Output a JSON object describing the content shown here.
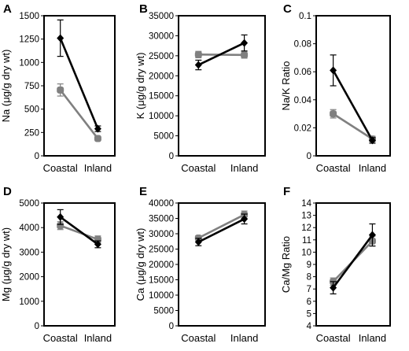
{
  "chart_data": [
    {
      "panel": "A",
      "type": "line",
      "ylabel": "Na (μg/g dry wt)",
      "categories": [
        "Coastal",
        "Inland"
      ],
      "ylim": [
        0,
        1500
      ],
      "yticks": [
        0,
        250,
        500,
        750,
        1000,
        1250,
        1500
      ],
      "series": [
        {
          "color": "#000000",
          "marker": "diamond",
          "values": [
            1260,
            290
          ],
          "errors": [
            195,
            30
          ]
        },
        {
          "color": "#808080",
          "marker": "circle",
          "values": [
            705,
            185
          ],
          "errors": [
            65,
            15
          ]
        }
      ]
    },
    {
      "panel": "B",
      "type": "line",
      "ylabel": "K (μg/g dry wt)",
      "categories": [
        "Coastal",
        "Inland"
      ],
      "ylim": [
        0,
        35000
      ],
      "yticks": [
        0,
        5000,
        10000,
        15000,
        20000,
        25000,
        30000,
        35000
      ],
      "series": [
        {
          "color": "#000000",
          "marker": "diamond",
          "values": [
            22700,
            28200
          ],
          "errors": [
            1200,
            2000
          ]
        },
        {
          "color": "#808080",
          "marker": "circle",
          "values": [
            25300,
            25200
          ],
          "errors": [
            800,
            800
          ]
        }
      ]
    },
    {
      "panel": "C",
      "type": "line",
      "ylabel": "Na/K Ratio",
      "categories": [
        "Coastal",
        "Inland"
      ],
      "ylim": [
        0,
        0.1
      ],
      "yticks": [
        "0",
        "0.02",
        "0.04",
        "0.06",
        "0.08",
        "0.1"
      ],
      "series": [
        {
          "color": "#000000",
          "marker": "diamond",
          "values": [
            0.061,
            0.011
          ],
          "errors": [
            0.011,
            0.002
          ]
        },
        {
          "color": "#808080",
          "marker": "circle",
          "values": [
            0.03,
            0.012
          ],
          "errors": [
            0.003,
            0.002
          ]
        }
      ]
    },
    {
      "panel": "D",
      "type": "line",
      "ylabel": "Mg (μg/g dry wt)",
      "categories": [
        "Coastal",
        "Inland"
      ],
      "ylim": [
        0,
        5000
      ],
      "yticks": [
        0,
        1000,
        2000,
        3000,
        4000,
        5000
      ],
      "series": [
        {
          "color": "#000000",
          "marker": "diamond",
          "values": [
            4430,
            3320
          ],
          "errors": [
            300,
            140
          ]
        },
        {
          "color": "#808080",
          "marker": "circle",
          "values": [
            4080,
            3520
          ],
          "errors": [
            160,
            140
          ]
        }
      ]
    },
    {
      "panel": "E",
      "type": "line",
      "ylabel": "Ca (μg/g dry wt)",
      "categories": [
        "Coastal",
        "Inland"
      ],
      "ylim": [
        0,
        40000
      ],
      "yticks": [
        0,
        5000,
        10000,
        15000,
        20000,
        25000,
        30000,
        35000,
        40000
      ],
      "series": [
        {
          "color": "#000000",
          "marker": "diamond",
          "values": [
            27300,
            34800
          ],
          "errors": [
            1200,
            1600
          ]
        },
        {
          "color": "#808080",
          "marker": "circle",
          "values": [
            28600,
            36200
          ],
          "errors": [
            700,
            1200
          ]
        }
      ]
    },
    {
      "panel": "F",
      "type": "line",
      "ylabel": "Ca/Mg Ratio",
      "categories": [
        "Coastal",
        "Inland"
      ],
      "ylim": [
        4,
        14
      ],
      "yticks": [
        4,
        5,
        6,
        7,
        8,
        9,
        10,
        11,
        12,
        13,
        14
      ],
      "series": [
        {
          "color": "#000000",
          "marker": "diamond",
          "values": [
            7.1,
            11.4
          ],
          "errors": [
            0.5,
            0.9
          ]
        },
        {
          "color": "#808080",
          "marker": "circle",
          "values": [
            7.6,
            10.9
          ],
          "errors": [
            0.3,
            0.4
          ]
        }
      ]
    }
  ]
}
